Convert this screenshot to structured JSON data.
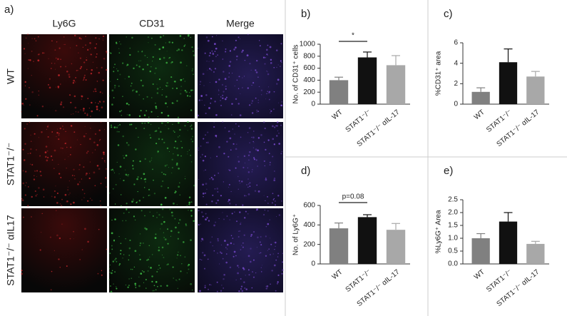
{
  "panel_a": {
    "label": "a)",
    "columns": [
      "Ly6G",
      "CD31",
      "Merge"
    ],
    "rows": [
      "WT",
      "STAT1⁻/⁻",
      "STAT1⁻/⁻ αIL17"
    ]
  },
  "chart_data": [
    {
      "type": "bar",
      "label": "b)",
      "y_label": "No. of CD31⁺ cells",
      "categories": [
        "WT",
        "STAT1⁻/⁻",
        "STAT1⁻/⁻ αIL-17"
      ],
      "values": [
        400,
        780,
        650
      ],
      "errors": [
        50,
        90,
        160
      ],
      "colors": [
        "#808080",
        "#111111",
        "#a8a8a8"
      ],
      "ylim": [
        0,
        1000
      ],
      "yticks": [
        0,
        200,
        400,
        600,
        800,
        1000
      ],
      "annotation": "*"
    },
    {
      "type": "bar",
      "label": "c)",
      "y_label": "%CD31⁺ area",
      "categories": [
        "WT",
        "STAT1⁻/⁻",
        "STAT1⁻/⁻ αIL-17"
      ],
      "values": [
        1.2,
        4.1,
        2.7
      ],
      "errors": [
        0.4,
        1.3,
        0.5
      ],
      "colors": [
        "#808080",
        "#111111",
        "#a8a8a8"
      ],
      "ylim": [
        0,
        6
      ],
      "yticks": [
        0,
        2,
        4,
        6
      ]
    },
    {
      "type": "bar",
      "label": "d)",
      "y_label": "No. of Ly6G⁺",
      "categories": [
        "WT",
        "STAT1⁻/⁻",
        "STAT1⁻/⁻ αIL-17"
      ],
      "values": [
        365,
        480,
        350
      ],
      "errors": [
        55,
        25,
        65
      ],
      "colors": [
        "#808080",
        "#111111",
        "#a8a8a8"
      ],
      "ylim": [
        0,
        600
      ],
      "yticks": [
        0,
        200,
        400,
        600
      ],
      "annotation": "p=0.08"
    },
    {
      "type": "bar",
      "label": "e)",
      "y_label": "%Ly6G⁺ Area",
      "categories": [
        "WT",
        "STAT1⁻/⁻",
        "STAT1⁻/⁻ αIL-17"
      ],
      "values": [
        1.0,
        1.65,
        0.78
      ],
      "errors": [
        0.18,
        0.35,
        0.1
      ],
      "colors": [
        "#808080",
        "#111111",
        "#a8a8a8"
      ],
      "ylim": [
        0,
        2.5
      ],
      "yticks": [
        {
          "value": 0,
          "label": "0.0"
        },
        0.5,
        {
          "value": 1,
          "label": "1.0"
        },
        1.5,
        {
          "value": 2,
          "label": "2.0"
        },
        2.5
      ]
    }
  ]
}
